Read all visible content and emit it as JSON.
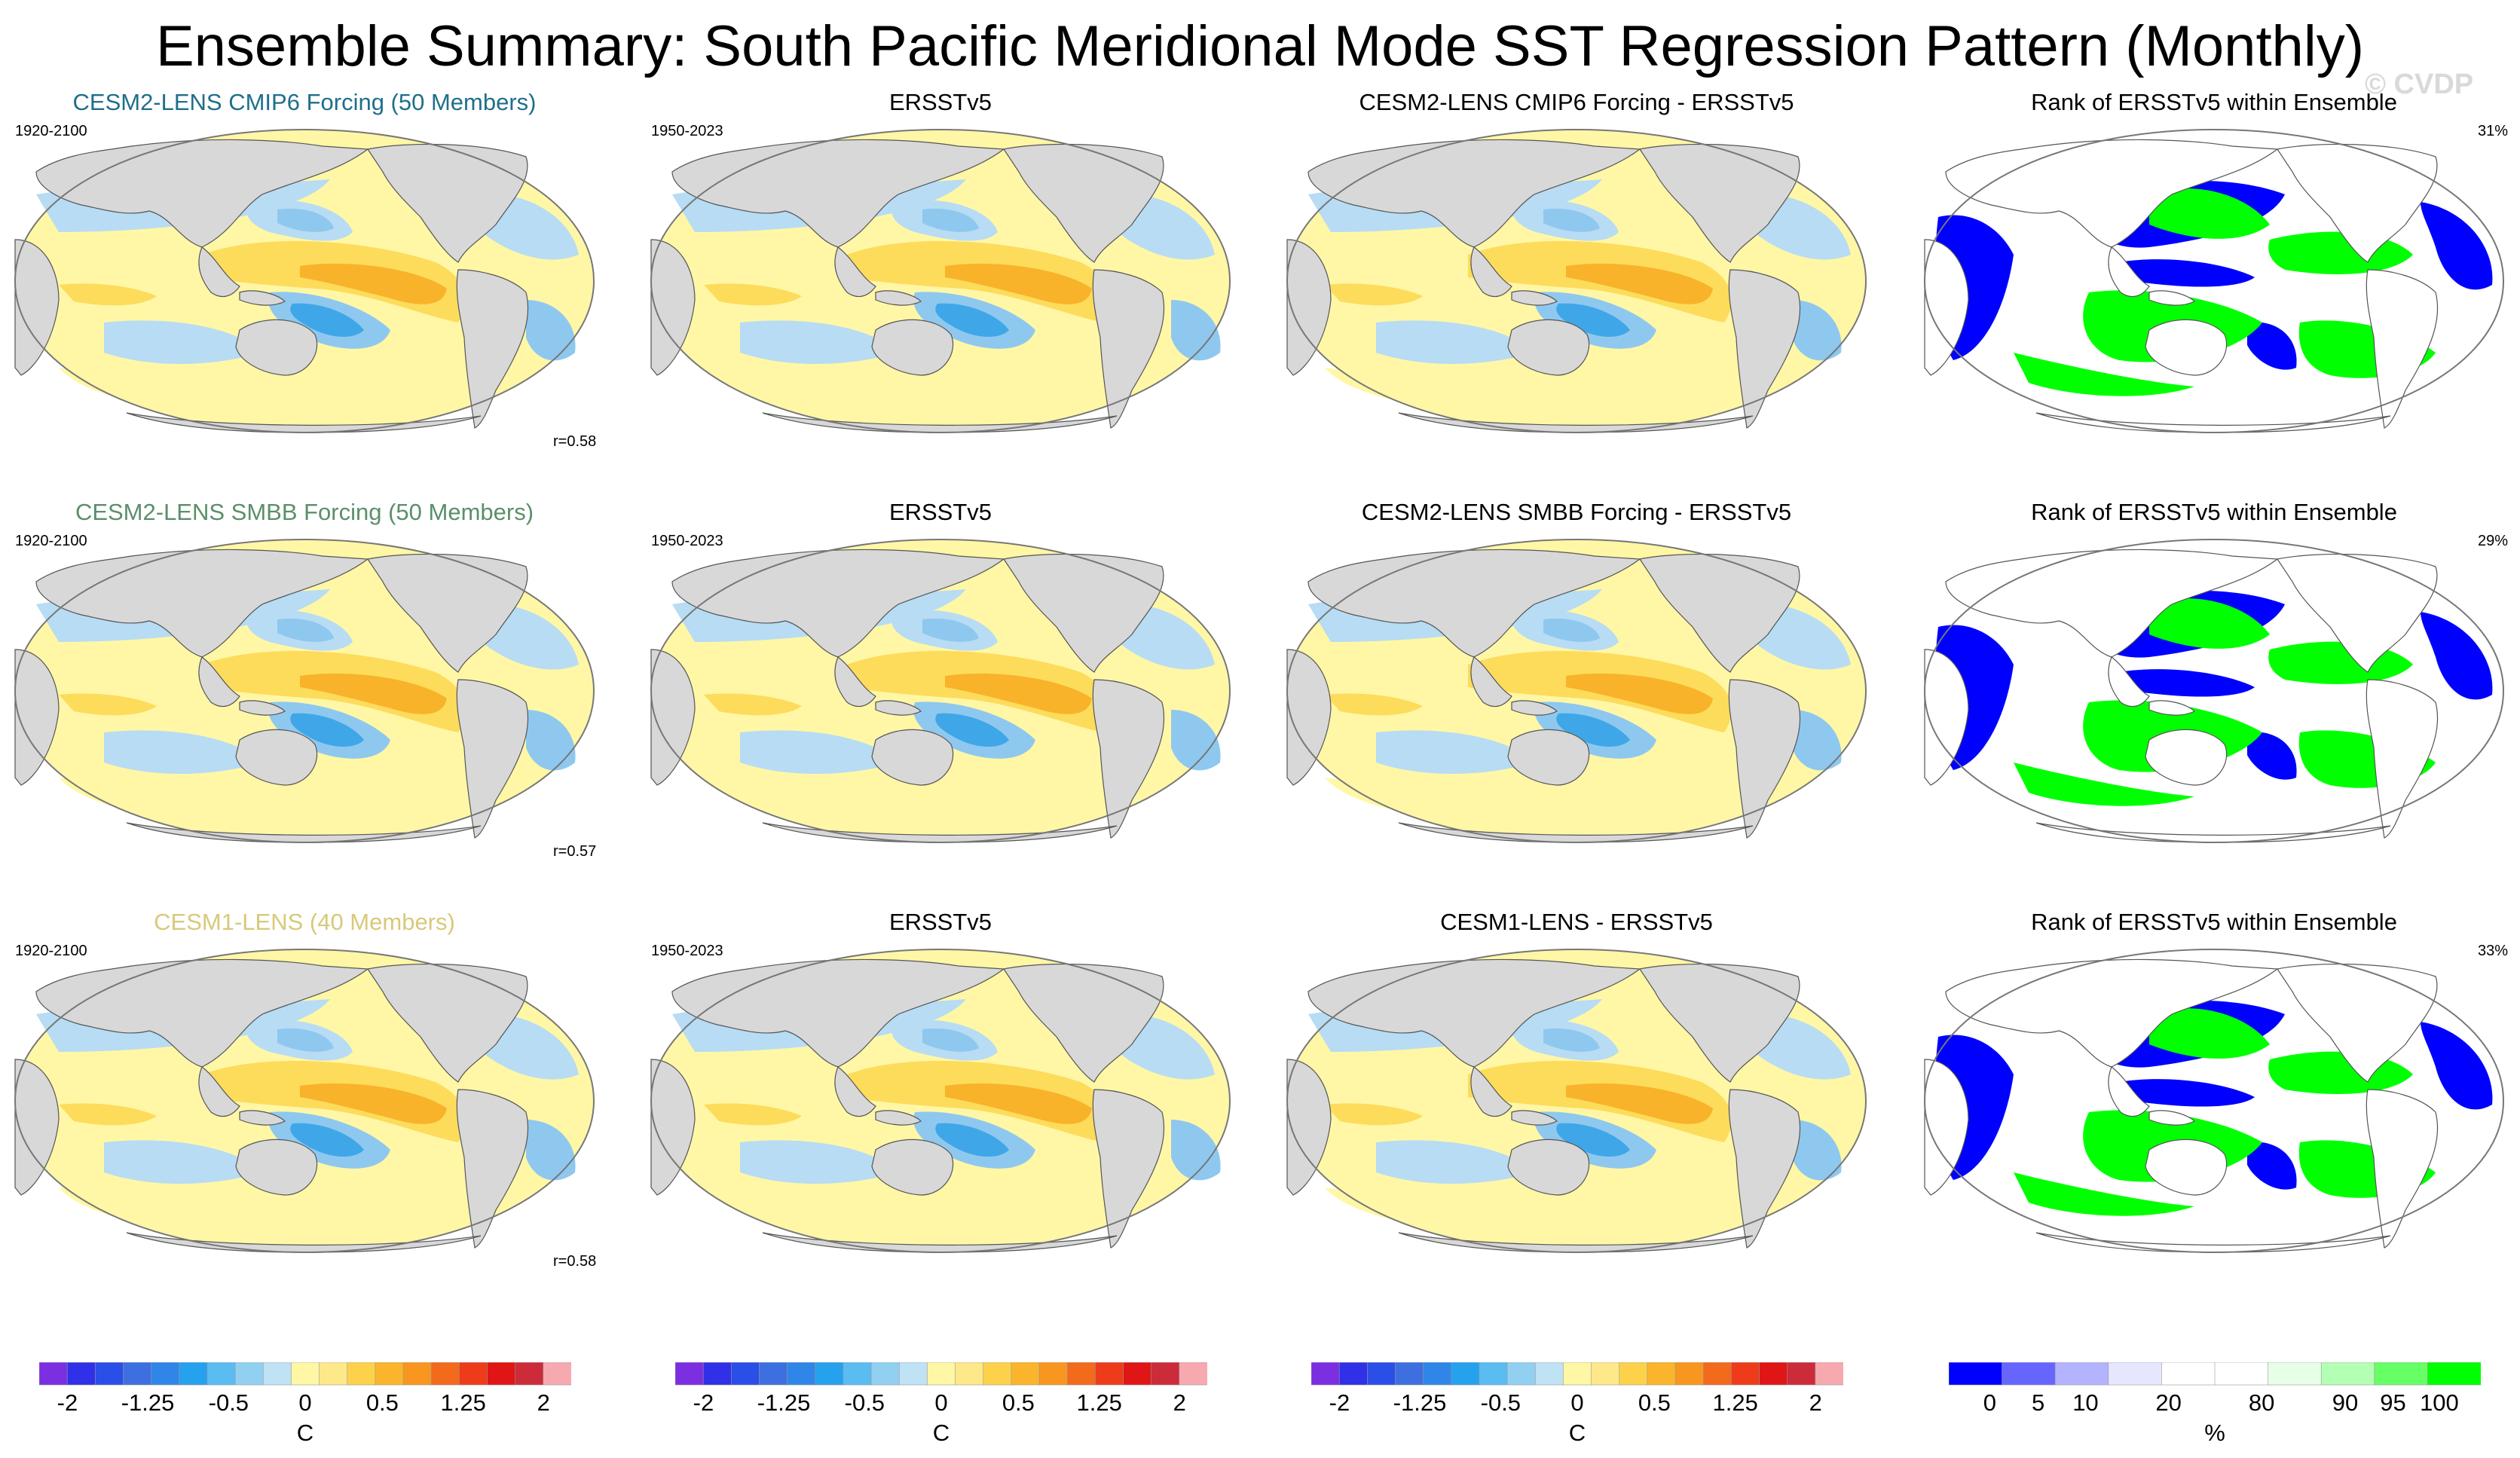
{
  "title": "Ensemble Summary: South Pacific Meridional Mode SST Regression Pattern (Monthly)",
  "copyright": "© CVDP",
  "colors": {
    "land": "#d8d8d8",
    "pos_weak": "#fff7a6",
    "pos_mid": "#fddc5c",
    "pos_strong": "#f8b32a",
    "neg_weak": "#b7dcf4",
    "neg_mid": "#8fc8ef",
    "neg_strong": "#3fa7e8",
    "rank_low": "#0000ff",
    "rank_high": "#00ff00"
  },
  "rows": [
    {
      "model_title": "CESM2-LENS CMIP6 Forcing (50 Members)",
      "model_title_color": "#1f6f8b",
      "model_period": "1920-2100",
      "pattern_corr": "r=0.58",
      "obs_title": "ERSSTv5",
      "obs_period": "1950-2023",
      "diff_title": "CESM2-LENS CMIP6 Forcing - ERSSTv5",
      "rank_title": "Rank of ERSSTv5 within Ensemble",
      "rank_percent": "31%"
    },
    {
      "model_title": "CESM2-LENS SMBB Forcing (50 Members)",
      "model_title_color": "#5a8f6a",
      "model_period": "1920-2100",
      "pattern_corr": "r=0.57",
      "obs_title": "ERSSTv5",
      "obs_period": "1950-2023",
      "diff_title": "CESM2-LENS SMBB Forcing - ERSSTv5",
      "rank_title": "Rank of ERSSTv5 within Ensemble",
      "rank_percent": "29%"
    },
    {
      "model_title": "CESM1-LENS (40 Members)",
      "model_title_color": "#d8c97a",
      "model_period": "1920-2100",
      "pattern_corr": "r=0.58",
      "obs_title": "ERSSTv5",
      "obs_period": "1950-2023",
      "diff_title": "CESM1-LENS - ERSSTv5",
      "rank_title": "Rank of ERSSTv5 within Ensemble",
      "rank_percent": "33%"
    }
  ],
  "colorbars": {
    "sst": {
      "unit": "C",
      "tick_labels": [
        "-2",
        "-1.25",
        "-0.5",
        "0",
        "0.5",
        "1.25",
        "2"
      ],
      "colors": [
        "#7b2fe0",
        "#3030e8",
        "#2a4ee8",
        "#3d6fe0",
        "#2f86e8",
        "#26a1ee",
        "#5bbcf2",
        "#92d0f2",
        "#bfe2f5",
        "#fff7a6",
        "#fde98a",
        "#fdd24a",
        "#fbb52c",
        "#f89620",
        "#f36a1c",
        "#ee3b1a",
        "#e01515",
        "#cc2b3a",
        "#f7a9b0"
      ]
    },
    "rank": {
      "unit": "%",
      "tick_labels": [
        "0",
        "5",
        "10",
        "20",
        "80",
        "90",
        "95",
        "100"
      ],
      "colors": [
        "#0000ff",
        "#6666ff",
        "#b3b3ff",
        "#e6e6ff",
        "#ffffff",
        "#ffffff",
        "#e6ffe6",
        "#b3ffb3",
        "#66ff66",
        "#00ff00"
      ]
    }
  },
  "chart_data": [
    {
      "type": "heatmap",
      "title": "CESM2-LENS CMIP6 Forcing (50 Members)",
      "subtitle": "1920-2100",
      "annotation": "r=0.58",
      "projection": "robinson",
      "unit": "C",
      "colorbar_range": [
        -2,
        2
      ]
    },
    {
      "type": "heatmap",
      "title": "ERSSTv5",
      "subtitle": "1950-2023",
      "projection": "robinson",
      "unit": "C",
      "colorbar_range": [
        -2,
        2
      ]
    },
    {
      "type": "heatmap",
      "title": "CESM2-LENS CMIP6 Forcing - ERSSTv5",
      "projection": "robinson",
      "unit": "C",
      "colorbar_range": [
        -2,
        2
      ]
    },
    {
      "type": "heatmap",
      "title": "Rank of ERSSTv5 within Ensemble",
      "annotation": "31%",
      "projection": "robinson",
      "unit": "%",
      "colorbar_range": [
        0,
        100
      ]
    },
    {
      "type": "heatmap",
      "title": "CESM2-LENS SMBB Forcing (50 Members)",
      "subtitle": "1920-2100",
      "annotation": "r=0.57",
      "projection": "robinson",
      "unit": "C",
      "colorbar_range": [
        -2,
        2
      ]
    },
    {
      "type": "heatmap",
      "title": "ERSSTv5",
      "subtitle": "1950-2023",
      "projection": "robinson",
      "unit": "C",
      "colorbar_range": [
        -2,
        2
      ]
    },
    {
      "type": "heatmap",
      "title": "CESM2-LENS SMBB Forcing - ERSSTv5",
      "projection": "robinson",
      "unit": "C",
      "colorbar_range": [
        -2,
        2
      ]
    },
    {
      "type": "heatmap",
      "title": "Rank of ERSSTv5 within Ensemble",
      "annotation": "29%",
      "projection": "robinson",
      "unit": "%",
      "colorbar_range": [
        0,
        100
      ]
    },
    {
      "type": "heatmap",
      "title": "CESM1-LENS (40 Members)",
      "subtitle": "1920-2100",
      "annotation": "r=0.58",
      "projection": "robinson",
      "unit": "C",
      "colorbar_range": [
        -2,
        2
      ]
    },
    {
      "type": "heatmap",
      "title": "ERSSTv5",
      "subtitle": "1950-2023",
      "projection": "robinson",
      "unit": "C",
      "colorbar_range": [
        -2,
        2
      ]
    },
    {
      "type": "heatmap",
      "title": "CESM1-LENS - ERSSTv5",
      "projection": "robinson",
      "unit": "C",
      "colorbar_range": [
        -2,
        2
      ]
    },
    {
      "type": "heatmap",
      "title": "Rank of ERSSTv5 within Ensemble",
      "annotation": "33%",
      "projection": "robinson",
      "unit": "%",
      "colorbar_range": [
        0,
        100
      ]
    }
  ]
}
